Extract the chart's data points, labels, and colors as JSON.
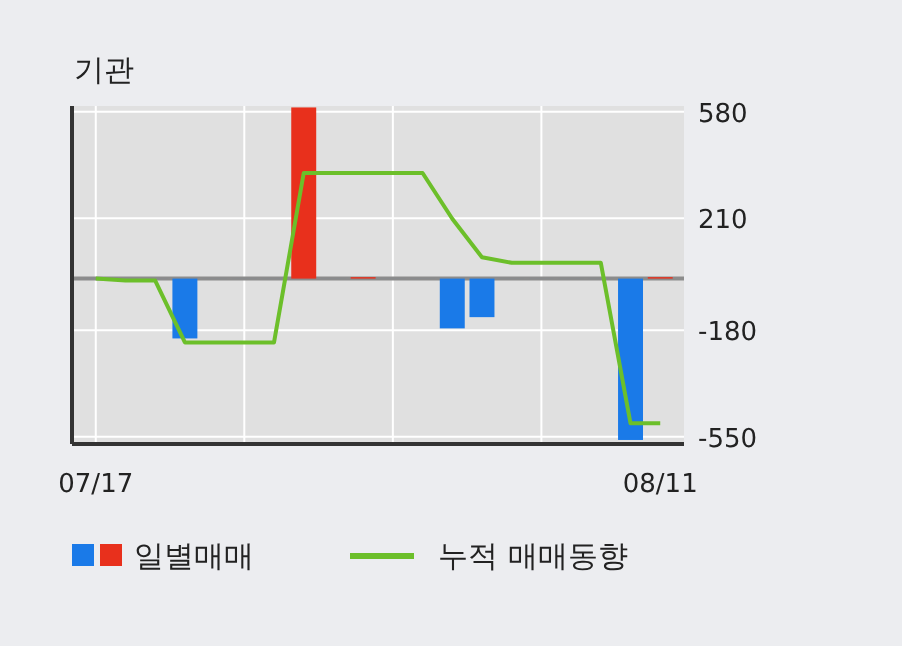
{
  "chart_data": {
    "type": "bar",
    "title": "기관",
    "categories": [
      "07/17",
      null,
      null,
      null,
      null,
      null,
      null,
      null,
      null,
      null,
      null,
      null,
      null,
      null,
      null,
      null,
      null,
      null,
      null,
      "08/11"
    ],
    "series": [
      {
        "name": "일별매매",
        "colors": [
          "#1a7ae8",
          "#1a7ae8",
          "#1a7ae8",
          "#1a7ae8",
          "#1a7ae8",
          "#1a7ae8",
          "#1a7ae8",
          "#e8301c",
          "#1a7ae8",
          "#e8301c",
          "#1a7ae8",
          "#1a7ae8",
          "#1a7ae8",
          "#1a7ae8",
          "#1a7ae8",
          "#1a7ae8",
          "#1a7ae8",
          "#1a7ae8",
          "#1a7ae8",
          "#e8301c"
        ],
        "values": [
          0,
          0,
          0,
          -208,
          0,
          0,
          0,
          595,
          0,
          5,
          0,
          0,
          -173,
          -134,
          0,
          0,
          0,
          0,
          -561,
          5
        ]
      },
      {
        "name": "누적 매매동향",
        "type": "line",
        "color": "#6cbf2a",
        "values": [
          0,
          -7,
          -7,
          -222,
          -222,
          -222,
          -222,
          367,
          367,
          367,
          367,
          367,
          208,
          74,
          55,
          55,
          55,
          55,
          -503,
          -503
        ]
      }
    ],
    "ylim": [
      -575,
      600
    ],
    "yticks": [
      580,
      210,
      -180,
      -550
    ],
    "grid": true,
    "legend": "bottom",
    "ref_lines": [
      {
        "axis": "y",
        "value": 0,
        "color": "#8c8c8c"
      }
    ]
  }
}
